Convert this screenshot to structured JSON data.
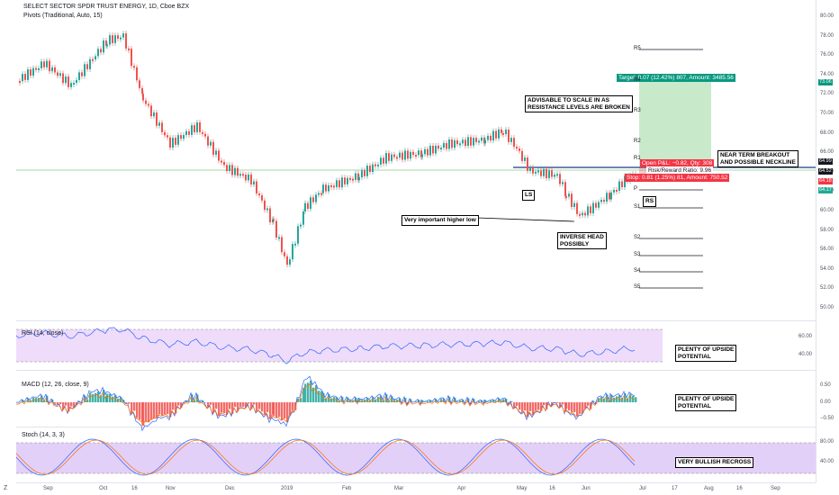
{
  "header": {
    "symbol_title": "SELECT SECTOR SPDR TRUST ENERGY, 1D, Cboe BZX",
    "indicator": "Pivots (Traditional, Auto, 15)"
  },
  "price_axis": [
    "80.00",
    "78.00",
    "76.00",
    "74.00",
    "72.00",
    "70.00",
    "68.00",
    "66.00",
    "64.00",
    "62.00",
    "60.00",
    "58.00",
    "56.00",
    "54.00",
    "52.00",
    "50.00"
  ],
  "price_tags": [
    {
      "value": "73.06",
      "color": "#089981"
    },
    {
      "value": "64.99",
      "color": "#131722"
    },
    {
      "value": "64.52",
      "color": "#131722"
    },
    {
      "value": "64.18",
      "color": "#f23645"
    },
    {
      "value": "64.17",
      "color": "#22ab94"
    }
  ],
  "pivots": [
    "R5",
    "R4",
    "R3",
    "R2",
    "R1",
    "P",
    "S1",
    "S2",
    "S3",
    "S4",
    "S5"
  ],
  "position": {
    "target": "Target: 8.07 (12.42%) 807, Amount: 3485.56",
    "open_pl": "Open P&L: −0.82, Qty: 308",
    "risk_reward": "Risk/Reward Ratio: 9.96",
    "stop": "Stop: 0.81 (1.25%) 81, Amount: 750.52"
  },
  "annotations": {
    "scale_in_1": "ADVISABLE TO SCALE IN AS",
    "scale_in_2": "RESISTANCE LEVELS ARE BROKEN",
    "neckline_1": "NEAR TERM BREAKOUT",
    "neckline_2": "AND POSSIBLE NECKLINE",
    "ls": "LS",
    "rs": "RS",
    "higher_low": "Very important higher low",
    "inverse_1": "INVERSE HEAD",
    "inverse_2": "POSSIBLY",
    "rsi_note_1": "PLENTY OF UPSIDE",
    "rsi_note_2": "POTENTIAL",
    "macd_note_1": "PLENTY OF UPSIDE",
    "macd_note_2": "POTENTIAL",
    "stoch_note": "VERY BULLISH RECROSS"
  },
  "rsi": {
    "label": "RSI (14, close)",
    "ticks": [
      "60.00",
      "40.00"
    ]
  },
  "macd": {
    "label": "MACD (12, 26, close, 9)",
    "ticks": [
      "0.50",
      "0.00",
      "−0.50"
    ]
  },
  "stoch": {
    "label": "Stoch (14, 3, 3)",
    "ticks": [
      "80.00",
      "40.00"
    ]
  },
  "x_axis": [
    "Sep",
    "Oct",
    "16",
    "Nov",
    "Dec",
    "2019",
    "Feb",
    "Mar",
    "Apr",
    "May",
    "16",
    "Jun",
    "Jul",
    "17",
    "Aug",
    "16",
    "Sep"
  ],
  "colors": {
    "up": "#26a69a",
    "down": "#ef5350",
    "target_zone": "#c8eacb",
    "stop_zone": "#f7c9c9",
    "rsi_band": "#efdcfb",
    "stoch_band": "#e3d0f8"
  }
}
